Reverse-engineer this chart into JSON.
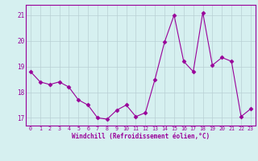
{
  "x": [
    0,
    1,
    2,
    3,
    4,
    5,
    6,
    7,
    8,
    9,
    10,
    11,
    12,
    13,
    14,
    15,
    16,
    17,
    18,
    19,
    20,
    21,
    22,
    23
  ],
  "y": [
    18.8,
    18.4,
    18.3,
    18.4,
    18.2,
    17.7,
    17.5,
    17.0,
    16.95,
    17.3,
    17.5,
    17.05,
    17.2,
    18.5,
    19.95,
    21.0,
    19.2,
    18.8,
    21.1,
    19.05,
    19.35,
    19.2,
    17.05,
    17.35
  ],
  "line_color": "#990099",
  "marker": "D",
  "marker_size": 2.5,
  "bg_color": "#d6f0f0",
  "grid_color": "#b8cfd4",
  "xlabel": "Windchill (Refroidissement éolien,°C)",
  "xlabel_color": "#990099",
  "tick_color": "#990099",
  "spine_color": "#990099",
  "ylim": [
    16.7,
    21.4
  ],
  "xlim": [
    -0.5,
    23.5
  ],
  "yticks": [
    17,
    18,
    19,
    20,
    21
  ],
  "xticks": [
    0,
    1,
    2,
    3,
    4,
    5,
    6,
    7,
    8,
    9,
    10,
    11,
    12,
    13,
    14,
    15,
    16,
    17,
    18,
    19,
    20,
    21,
    22,
    23
  ],
  "figsize": [
    3.2,
    2.0
  ],
  "dpi": 100
}
